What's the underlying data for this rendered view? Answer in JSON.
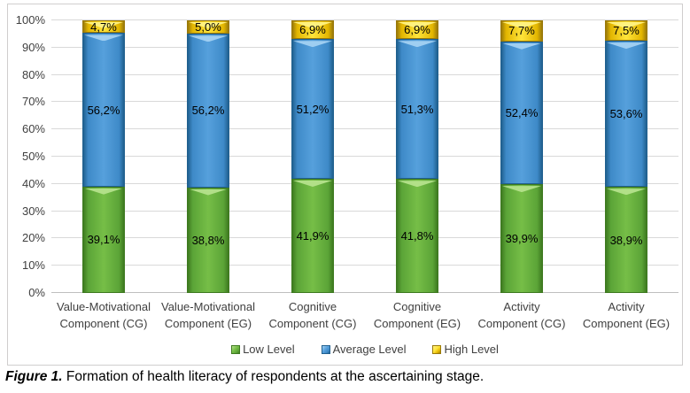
{
  "figure": {
    "caption_prefix": "Figure 1.",
    "caption_text": " Formation of health literacy of respondents at the ascertaining stage."
  },
  "chart_data": {
    "type": "bar",
    "stacked": true,
    "title": "",
    "xlabel": "",
    "ylabel": "",
    "categories": [
      "Value-Motivational Component (CG)",
      "Value-Motivational Component (EG)",
      "Cognitive Component (CG)",
      "Cognitive Component (EG)",
      "Activity Component (CG)",
      "Activity Component (EG)"
    ],
    "category_lines": [
      [
        "Value-Motivational",
        "Component (CG)"
      ],
      [
        "Value-Motivational",
        "Component (EG)"
      ],
      [
        "Cognitive",
        "Component (CG)"
      ],
      [
        "Cognitive",
        "Component (EG)"
      ],
      [
        "Activity",
        "Component (CG)"
      ],
      [
        "Activity",
        "Component (EG)"
      ]
    ],
    "series": [
      {
        "name": "Low Level",
        "color_key": "low",
        "values": [
          39.1,
          38.8,
          41.9,
          41.8,
          39.9,
          38.9
        ],
        "labels": [
          "39,1%",
          "38,8%",
          "41,9%",
          "41,8%",
          "39,9%",
          "38,9%"
        ]
      },
      {
        "name": "Average Level",
        "color_key": "average",
        "values": [
          56.2,
          56.2,
          51.2,
          51.3,
          52.4,
          53.6
        ],
        "labels": [
          "56,2%",
          "56,2%",
          "51,2%",
          "51,3%",
          "52,4%",
          "53,6%"
        ]
      },
      {
        "name": "High Level",
        "color_key": "high",
        "values": [
          4.7,
          5.0,
          6.9,
          6.9,
          7.7,
          7.5
        ],
        "labels": [
          "4,7%",
          "5,0%",
          "6,9%",
          "6,9%",
          "7,7%",
          "7,5%"
        ]
      }
    ],
    "ylim": [
      0,
      100
    ],
    "ytick_labels": [
      "0%",
      "10%",
      "20%",
      "30%",
      "40%",
      "50%",
      "60%",
      "70%",
      "80%",
      "90%",
      "100%"
    ],
    "grid": true,
    "legend_position": "bottom",
    "legend": [
      "Low Level",
      "Average Level",
      "High Level"
    ]
  },
  "colors": {
    "low": {
      "center": "#76BE47",
      "mid": "#5BA437",
      "edge": "#3E7A20",
      "highlight": "#B5E18C"
    },
    "average": {
      "center": "#56A0DC",
      "mid": "#3E8AC8",
      "edge": "#20608F",
      "highlight": "#A3D1F2"
    },
    "high": {
      "center": "#FFE43B",
      "mid": "#E3B600",
      "edge": "#99790A",
      "highlight": "#FFF284"
    },
    "gridline": "#D9D9D9",
    "axis_line": "#BFBFBF",
    "tick_text": "#404040"
  }
}
